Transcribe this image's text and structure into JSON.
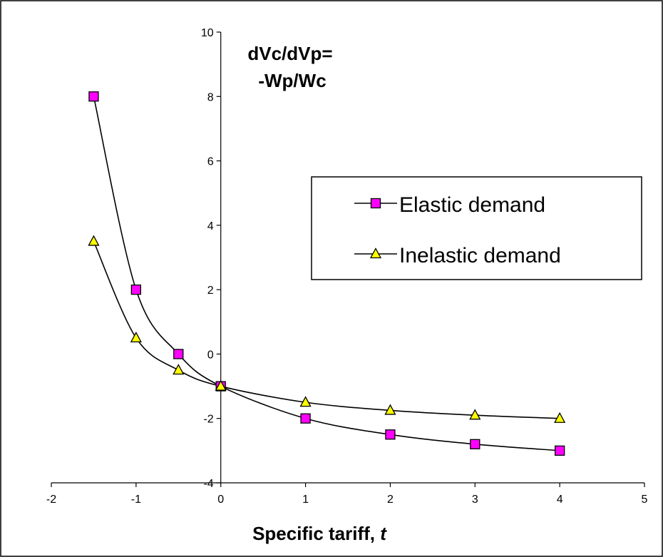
{
  "chart_data": {
    "type": "line",
    "title": "",
    "xlabel": "Specific tariff, ",
    "xlabel_italic": "t",
    "ylabel": "",
    "xlim": [
      -2,
      5
    ],
    "ylim": [
      -4,
      10
    ],
    "xticks": [
      "-2",
      "-1",
      "0",
      "1",
      "2",
      "3",
      "4",
      "5"
    ],
    "yticks": [
      "-4",
      "-2",
      "0",
      "2",
      "4",
      "6",
      "8",
      "10"
    ],
    "grid": false,
    "smooth": true,
    "legend_position": "right",
    "annotation": [
      "dVc/dVp=",
      "-Wp/Wc"
    ],
    "series": [
      {
        "name": "Elastic demand",
        "marker": "square",
        "marker_color": "#ff00ff",
        "line_color": "#000000",
        "x": [
          -1.5,
          -1,
          -0.5,
          0,
          1,
          2,
          3,
          4
        ],
        "values": [
          8,
          2,
          0,
          -1,
          -2,
          -2.5,
          -2.8,
          -3
        ]
      },
      {
        "name": "Inelastic demand",
        "marker": "triangle",
        "marker_color": "#ffff00",
        "line_color": "#000000",
        "x": [
          -1.5,
          -1,
          -0.5,
          0,
          1,
          2,
          3,
          4
        ],
        "values": [
          3.5,
          0.5,
          -0.5,
          -1,
          -1.5,
          -1.75,
          -1.9,
          -2
        ]
      }
    ]
  }
}
